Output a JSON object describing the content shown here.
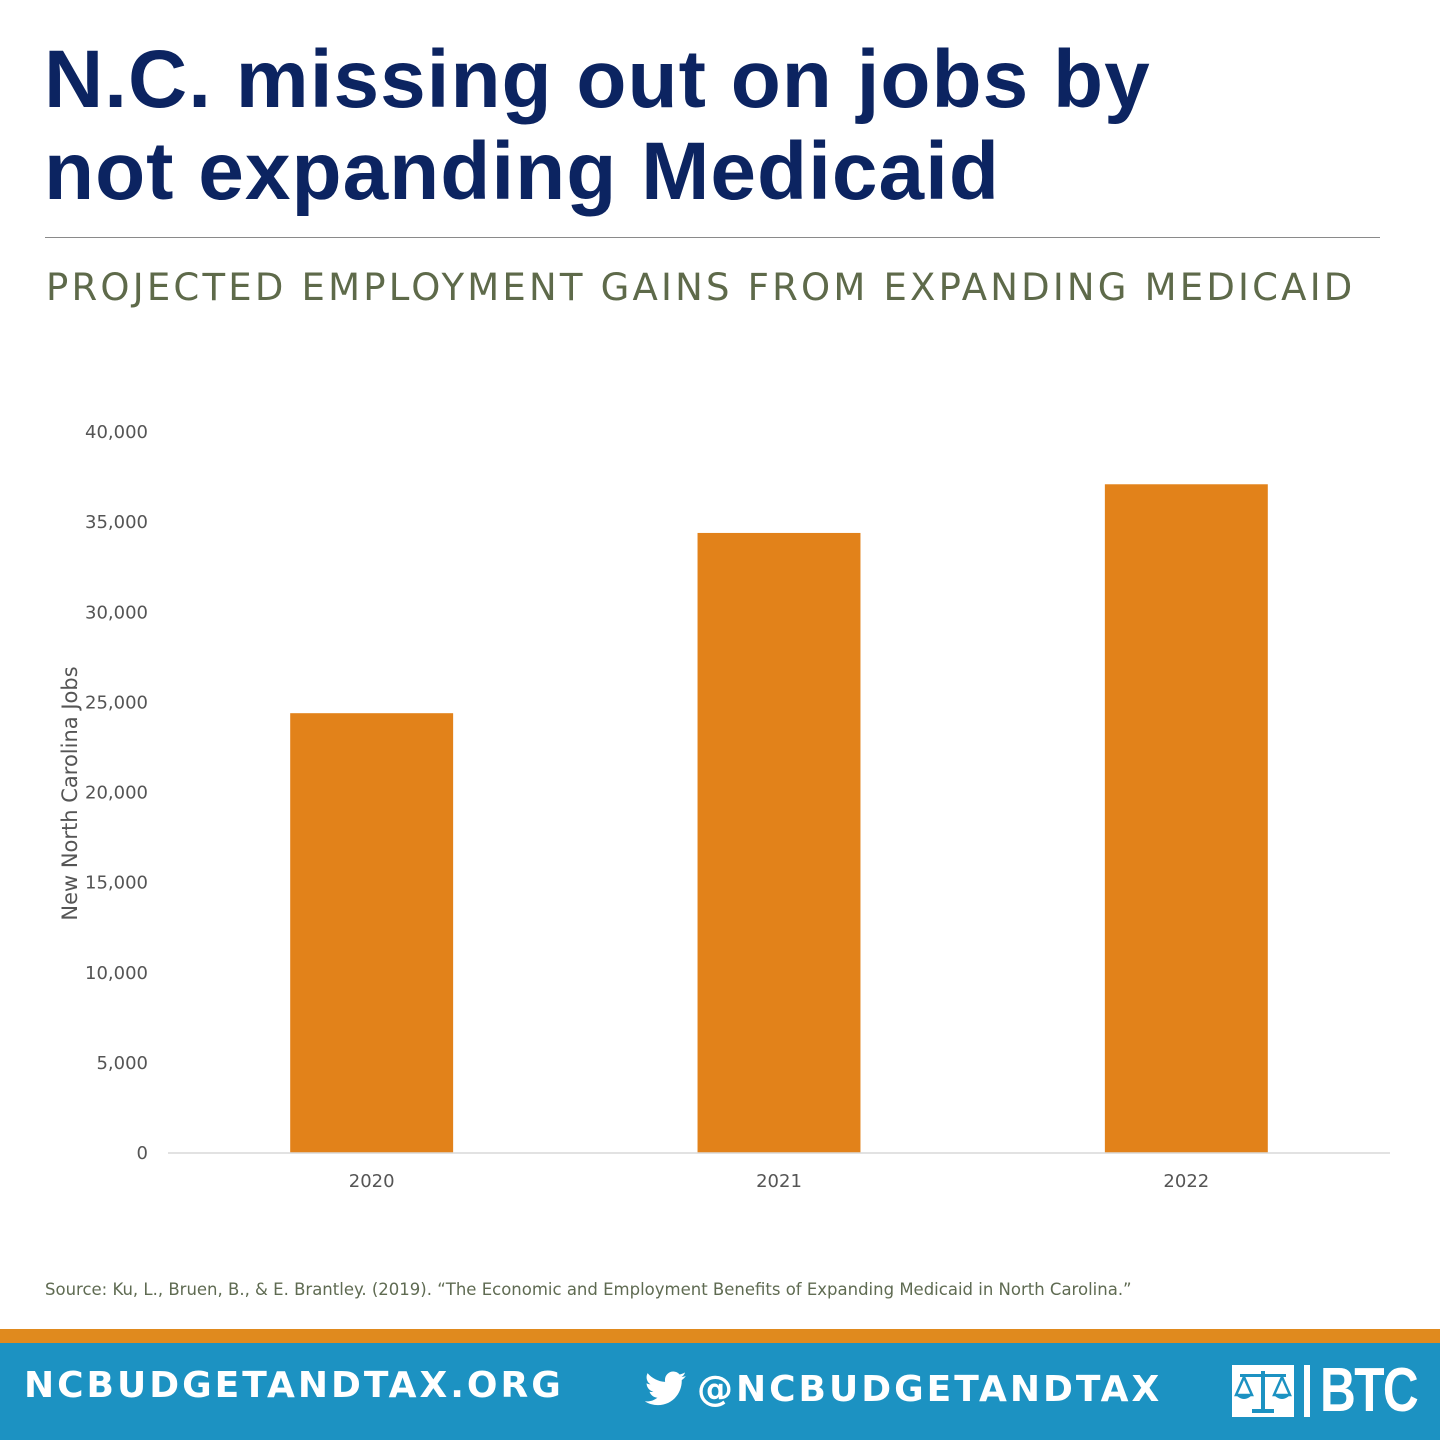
{
  "headline": {
    "line1": "N.C. missing out on jobs by",
    "line2": "not expanding Medicaid"
  },
  "subtitle": "PROJECTED EMPLOYMENT GAINS FROM EXPANDING MEDICAID",
  "chart_data": {
    "type": "bar",
    "categories": [
      "2020",
      "2021",
      "2022"
    ],
    "values": [
      24400,
      34400,
      37100
    ],
    "ylabel": "New North Carolina Jobs",
    "xlabel": "",
    "ylim": [
      0,
      40000
    ],
    "yticks": [
      0,
      5000,
      10000,
      15000,
      20000,
      25000,
      30000,
      35000,
      40000
    ],
    "ytick_labels": [
      "0",
      "5,000",
      "10,000",
      "15,000",
      "20,000",
      "25,000",
      "30,000",
      "35,000",
      "40,000"
    ],
    "grid": false,
    "legend": "none",
    "bar_color": "#e2821a"
  },
  "source": "Source: Ku, L., Bruen, B., & E. Brantley. (2019). “The Economic and Employment Benefits of Expanding Medicaid in North Carolina.”",
  "footer": {
    "url": "NCBUDGETANDTAX.ORG",
    "handle": "@NCBUDGETANDTAX",
    "social_icon": "twitter-icon",
    "logo_text": "BTC",
    "logo_icon": "scales-icon"
  },
  "colors": {
    "headline": "#0c2461",
    "subtitle": "#5e6a4a",
    "footer_bg": "#1c92c2",
    "footer_stripe": "#e08a1e"
  }
}
